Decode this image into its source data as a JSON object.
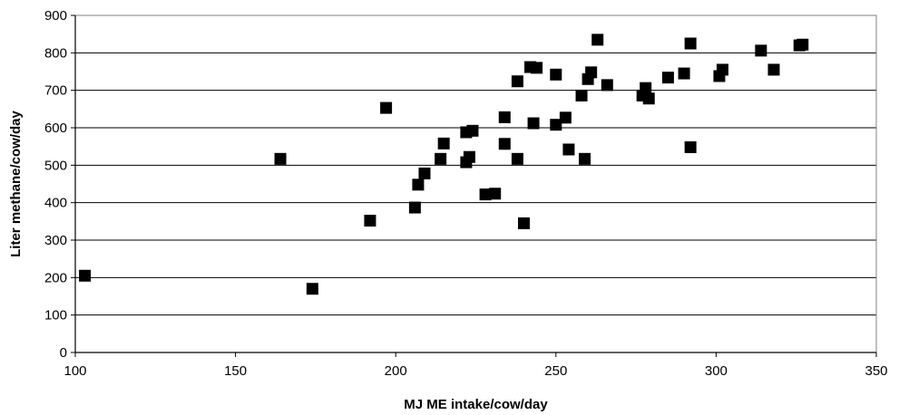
{
  "chart_data": {
    "type": "scatter",
    "title": "",
    "xlabel": "MJ ME intake/cow/day",
    "ylabel": "Liter methane/cow/day",
    "xlim": [
      100,
      350
    ],
    "ylim": [
      0,
      900
    ],
    "x_ticks": [
      "100",
      "150",
      "200",
      "250",
      "300",
      "350"
    ],
    "y_ticks": [
      "0",
      "100",
      "200",
      "300",
      "400",
      "500",
      "600",
      "700",
      "800",
      "900"
    ],
    "grid": "horizontal",
    "legend": "none",
    "marker": "square",
    "marker_color": "#000000",
    "points": [
      [
        103,
        205
      ],
      [
        164,
        517
      ],
      [
        174,
        170
      ],
      [
        192,
        352
      ],
      [
        197,
        653
      ],
      [
        206,
        387
      ],
      [
        207,
        448
      ],
      [
        209,
        478
      ],
      [
        214,
        517
      ],
      [
        215,
        558
      ],
      [
        222,
        508
      ],
      [
        222,
        588
      ],
      [
        223,
        522
      ],
      [
        224,
        592
      ],
      [
        228,
        422
      ],
      [
        231,
        424
      ],
      [
        234,
        628
      ],
      [
        234,
        557
      ],
      [
        238,
        724
      ],
      [
        238,
        517
      ],
      [
        240,
        345
      ],
      [
        242,
        762
      ],
      [
        243,
        612
      ],
      [
        244,
        760
      ],
      [
        250,
        608
      ],
      [
        250,
        742
      ],
      [
        253,
        627
      ],
      [
        254,
        542
      ],
      [
        258,
        686
      ],
      [
        259,
        517
      ],
      [
        260,
        730
      ],
      [
        261,
        748
      ],
      [
        263,
        835
      ],
      [
        266,
        714
      ],
      [
        277,
        686
      ],
      [
        278,
        706
      ],
      [
        279,
        678
      ],
      [
        285,
        734
      ],
      [
        290,
        745
      ],
      [
        292,
        548
      ],
      [
        292,
        825
      ],
      [
        301,
        738
      ],
      [
        302,
        755
      ],
      [
        314,
        806
      ],
      [
        318,
        755
      ],
      [
        326,
        820
      ],
      [
        327,
        822
      ]
    ]
  }
}
